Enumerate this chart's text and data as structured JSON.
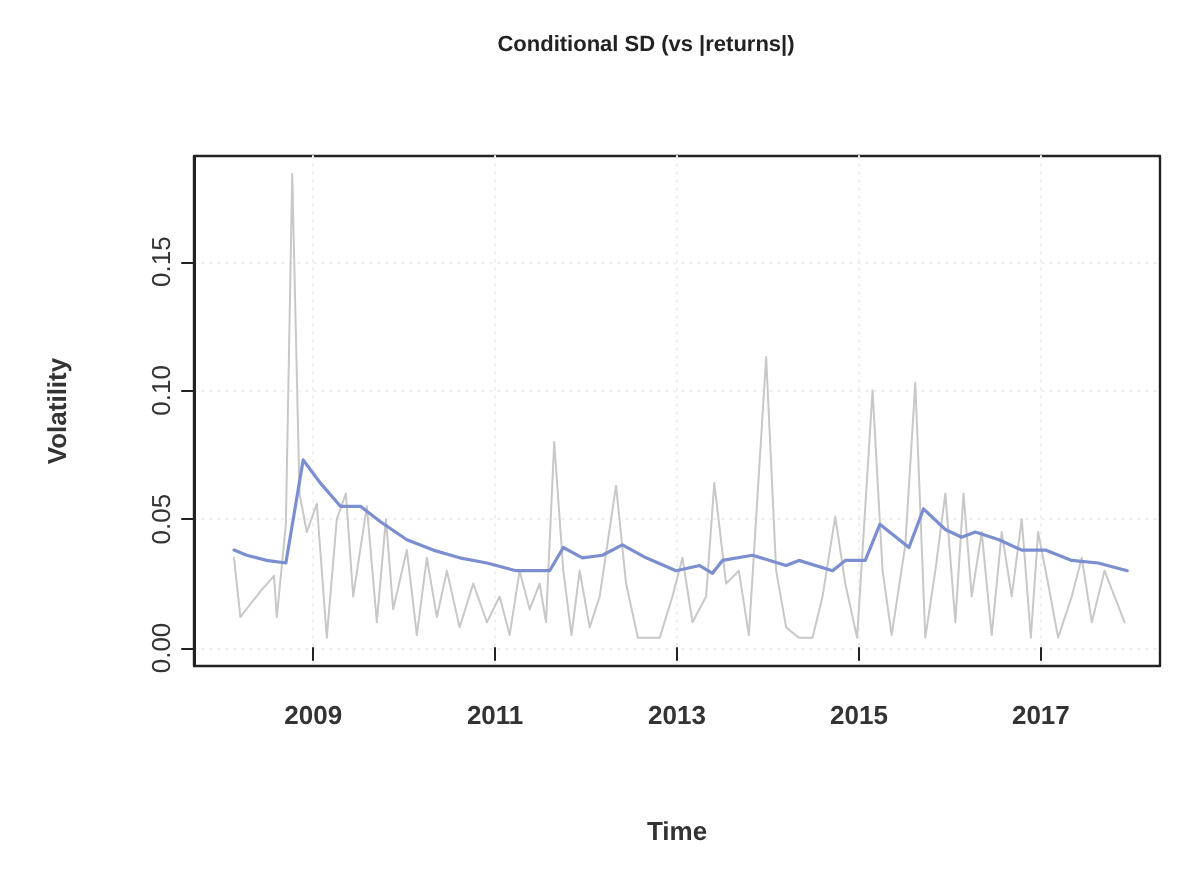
{
  "chart_data": {
    "type": "line",
    "title": "Conditional SD (vs |returns|)",
    "xlabel": "Time",
    "ylabel": "Volatility",
    "xlim": [
      2007.69,
      2018.31
    ],
    "xticks": [
      2009,
      2011,
      2013,
      2015,
      2017
    ],
    "ylim": [
      -0.007,
      0.191
    ],
    "yticks": [
      {
        "value": 0,
        "label": "0.00"
      },
      {
        "value": 0.05,
        "label": "0.05"
      },
      {
        "value": 0.1,
        "label": "0.10"
      },
      {
        "value": 0.15,
        "label": "0.15"
      }
    ],
    "grid": true,
    "marker": "none",
    "line_style": "solid",
    "series": [
      {
        "color": "#c8c8c8",
        "x": [
          2008.13,
          2008.2,
          2008.42,
          2008.57,
          2008.6,
          2008.7,
          2008.77,
          2008.85,
          2008.93,
          2009.04,
          2009.15,
          2009.26,
          2009.36,
          2009.44,
          2009.59,
          2009.7,
          2009.8,
          2009.88,
          2010.03,
          2010.14,
          2010.25,
          2010.36,
          2010.47,
          2010.61,
          2010.76,
          2010.91,
          2011.05,
          2011.16,
          2011.27,
          2011.38,
          2011.49,
          2011.56,
          2011.65,
          2011.75,
          2011.84,
          2011.93,
          2012.04,
          2012.15,
          2012.33,
          2012.44,
          2012.57,
          2012.7,
          2012.81,
          2012.95,
          2013.06,
          2013.17,
          2013.32,
          2013.41,
          2013.54,
          2013.68,
          2013.79,
          2013.98,
          2014.09,
          2014.2,
          2014.34,
          2014.49,
          2014.6,
          2014.74,
          2014.85,
          2014.98,
          2015.15,
          2015.26,
          2015.36,
          2015.51,
          2015.62,
          2015.73,
          2015.84,
          2015.95,
          2016.06,
          2016.15,
          2016.24,
          2016.35,
          2016.46,
          2016.57,
          2016.68,
          2016.79,
          2016.89,
          2016.97,
          2017.08,
          2017.19,
          2017.34,
          2017.45,
          2017.56,
          2017.7,
          2017.81,
          2017.92
        ],
        "values": [
          0.035,
          0.012,
          0.022,
          0.028,
          0.012,
          0.048,
          0.184,
          0.06,
          0.045,
          0.056,
          0.004,
          0.05,
          0.06,
          0.02,
          0.055,
          0.01,
          0.05,
          0.015,
          0.038,
          0.005,
          0.035,
          0.012,
          0.03,
          0.008,
          0.025,
          0.01,
          0.02,
          0.005,
          0.03,
          0.015,
          0.025,
          0.01,
          0.08,
          0.03,
          0.005,
          0.03,
          0.008,
          0.02,
          0.063,
          0.025,
          0.004,
          0.004,
          0.004,
          0.02,
          0.035,
          0.01,
          0.02,
          0.064,
          0.025,
          0.03,
          0.005,
          0.113,
          0.03,
          0.008,
          0.004,
          0.004,
          0.02,
          0.051,
          0.025,
          0.004,
          0.1,
          0.03,
          0.005,
          0.04,
          0.103,
          0.004,
          0.03,
          0.06,
          0.01,
          0.06,
          0.02,
          0.045,
          0.005,
          0.045,
          0.02,
          0.05,
          0.004,
          0.045,
          0.025,
          0.004,
          0.02,
          0.035,
          0.01,
          0.03,
          0.02,
          0.01
        ]
      },
      {
        "color": "#7b8fd0",
        "x": [
          2008.13,
          2008.27,
          2008.49,
          2008.7,
          2008.89,
          2009.08,
          2009.3,
          2009.52,
          2009.74,
          2010.03,
          2010.32,
          2010.61,
          2010.91,
          2011.23,
          2011.6,
          2011.75,
          2011.96,
          2012.18,
          2012.4,
          2012.66,
          2012.99,
          2013.25,
          2013.39,
          2013.5,
          2013.83,
          2014.2,
          2014.34,
          2014.71,
          2014.85,
          2015.07,
          2015.23,
          2015.55,
          2015.71,
          2015.95,
          2016.13,
          2016.28,
          2016.54,
          2016.79,
          2017.05,
          2017.34,
          2017.63,
          2017.95
        ],
        "values": [
          0.038,
          0.036,
          0.034,
          0.033,
          0.073,
          0.064,
          0.055,
          0.055,
          0.049,
          0.042,
          0.038,
          0.035,
          0.033,
          0.03,
          0.03,
          0.039,
          0.035,
          0.036,
          0.04,
          0.035,
          0.03,
          0.032,
          0.029,
          0.034,
          0.036,
          0.032,
          0.034,
          0.03,
          0.034,
          0.034,
          0.048,
          0.039,
          0.054,
          0.046,
          0.043,
          0.045,
          0.042,
          0.038,
          0.038,
          0.034,
          0.033,
          0.03
        ]
      }
    ]
  }
}
